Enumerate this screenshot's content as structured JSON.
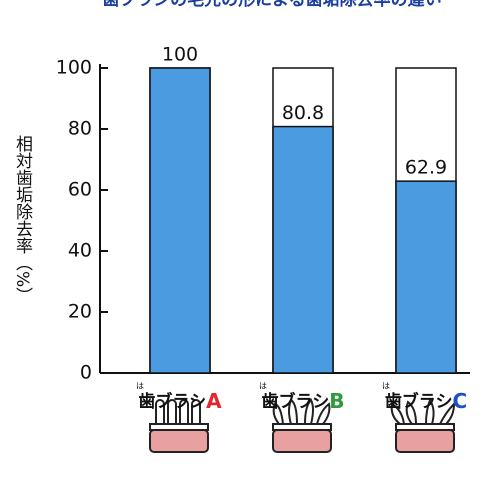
{
  "chart_data": {
    "type": "bar",
    "title": "歯ブラシの毛先の形による歯垢除去率の違い",
    "y_label": "相対歯垢除去率（%）",
    "category_prefix": "歯ブラシ",
    "category_ruby": "は",
    "categories": [
      "A",
      "B",
      "C"
    ],
    "category_colors": [
      "#e0282e",
      "#2e9a3c",
      "#1f4fc8"
    ],
    "values": [
      100,
      80.8,
      62.9
    ],
    "color": "#4a9be0",
    "ylim": [
      0,
      100
    ],
    "yticks": [
      0,
      20,
      40,
      60,
      80,
      100
    ]
  }
}
